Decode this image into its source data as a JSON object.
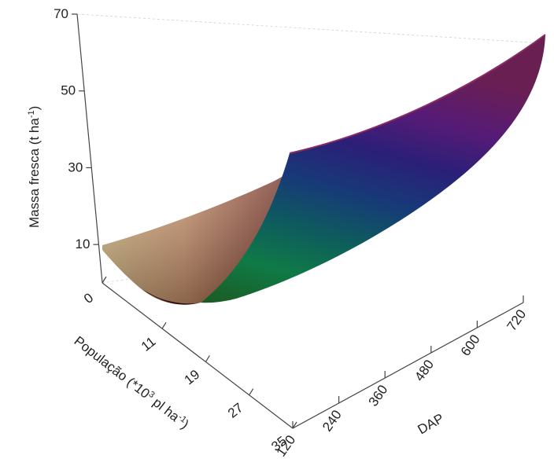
{
  "chart_data": {
    "type": "surface3d",
    "z_axis": {
      "label": "Massa fresca (t ha",
      "label_sup": "-1",
      "label_tail": ")",
      "ticks": [
        "10",
        "30",
        "50",
        "70"
      ],
      "range": [
        0,
        70
      ]
    },
    "population_axis": {
      "label": "População (*10",
      "label_sup1": "3",
      "label_mid": " pl ha",
      "label_sup2": "-1",
      "label_tail": ")",
      "ticks": [
        "0",
        "11",
        "19",
        "27",
        "35"
      ],
      "range": [
        0,
        35
      ]
    },
    "dap_axis": {
      "label": "DAP",
      "ticks": [
        "120",
        "240",
        "360",
        "480",
        "600",
        "720"
      ],
      "range": [
        120,
        720
      ]
    },
    "surface_corners": [
      {
        "dap": 120,
        "population": 0,
        "massa": 12
      },
      {
        "dap": 120,
        "population": 35,
        "massa": 2
      },
      {
        "dap": 720,
        "population": 0,
        "massa": 24
      },
      {
        "dap": 720,
        "population": 35,
        "massa": 71
      }
    ],
    "colors": {
      "low_front": "#2e0d10",
      "population_edge_high": "#e6cc96",
      "dap_edge_high": "#d4e070",
      "far_high": "#5e1e48",
      "mid_band": [
        "#0f6a3c",
        "#0f4e56",
        "#17306e",
        "#2d1a70",
        "#561a78"
      ]
    }
  }
}
